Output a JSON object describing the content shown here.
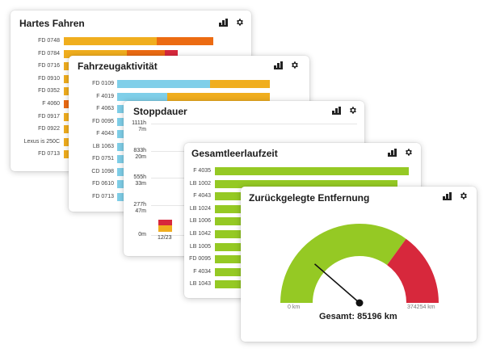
{
  "colors": {
    "yellow": "#f0ae1e",
    "orange": "#ec6b12",
    "red": "#d7283c",
    "blue": "#7fcfe9",
    "green": "#95c924"
  },
  "cards": {
    "hard_driving": {
      "title": "Hartes Fahren",
      "rows": [
        {
          "label": "FD 0748"
        },
        {
          "label": "FD 0784"
        },
        {
          "label": "FD 0716"
        },
        {
          "label": "FD 0910"
        },
        {
          "label": "FD 0352"
        },
        {
          "label": "F 4060"
        },
        {
          "label": "FD 0917"
        },
        {
          "label": "FD 0922"
        },
        {
          "label": "Lexus is 250C"
        },
        {
          "label": "FD 0713"
        }
      ]
    },
    "vehicle_activity": {
      "title": "Fahrzeugaktivität",
      "rows": [
        {
          "label": "FD 0109"
        },
        {
          "label": "F 4019"
        },
        {
          "label": "F 4063"
        },
        {
          "label": "FD 0095"
        },
        {
          "label": "F 4043"
        },
        {
          "label": "LB 1063"
        },
        {
          "label": "FD 0751"
        },
        {
          "label": "CD 1098"
        },
        {
          "label": "FD 0610"
        },
        {
          "label": "FD 0713"
        }
      ]
    },
    "stop_duration": {
      "title": "Stoppdauer",
      "y_ticks": [
        {
          "line1": "1111h",
          "line2": "7m"
        },
        {
          "line1": "833h",
          "line2": "20m"
        },
        {
          "line1": "555h",
          "line2": "33m"
        },
        {
          "line1": "277h",
          "line2": "47m"
        },
        {
          "line1": "0m",
          "line2": ""
        }
      ],
      "x_label": "12/23"
    },
    "idle_time": {
      "title": "Gesamtleerlaufzeit",
      "rows": [
        {
          "label": "F 4035"
        },
        {
          "label": "LB 1002"
        },
        {
          "label": "F 4043"
        },
        {
          "label": "LB 1024"
        },
        {
          "label": "LB 1006"
        },
        {
          "label": "LB 1042"
        },
        {
          "label": "LB 1005"
        },
        {
          "label": "FD 0095"
        },
        {
          "label": "F 4034"
        },
        {
          "label": "LB 1043"
        }
      ]
    },
    "distance": {
      "title": "Zurückgelegte Entfernung",
      "min_label": "0 km",
      "max_label": "374254 km",
      "total_label": "Gesamt: 85196 km",
      "total_km": 85196,
      "max_km": 374254
    }
  }
}
